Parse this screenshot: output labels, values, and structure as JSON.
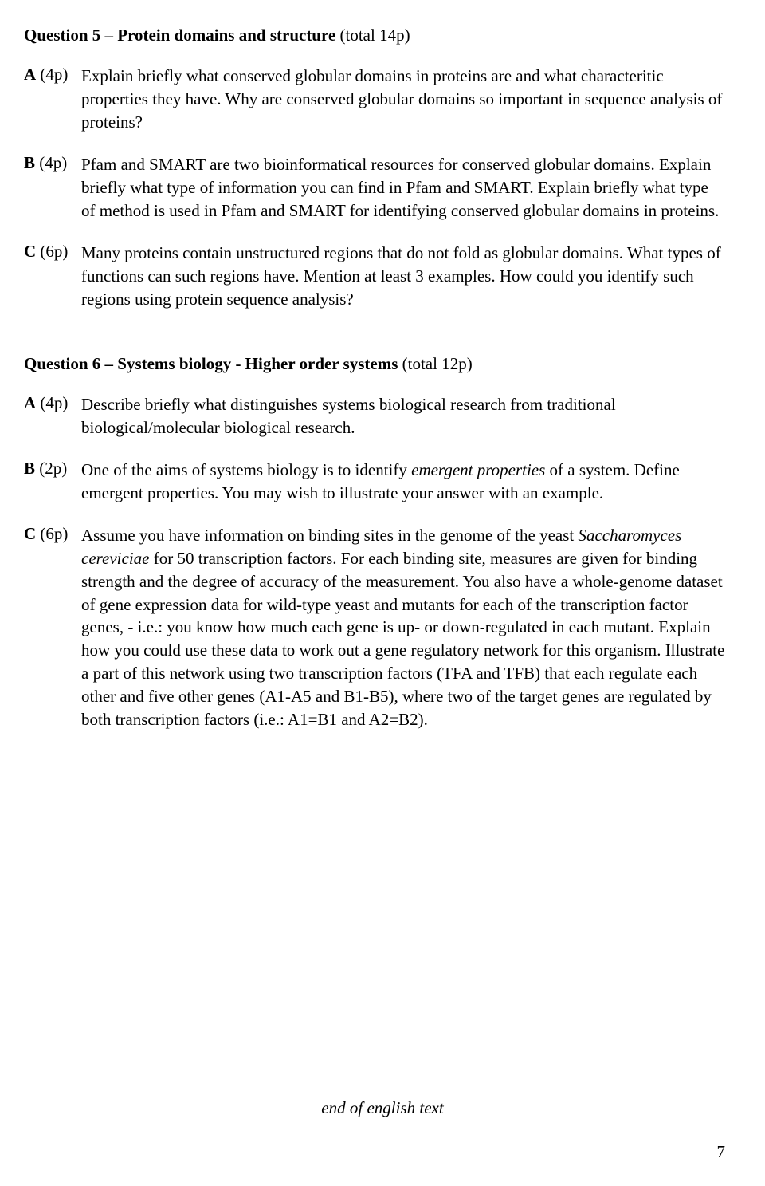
{
  "question5": {
    "heading_bold": "Question 5 – Protein domains and structure",
    "heading_rest": " (total 14p)",
    "partA": {
      "label_bold": "A",
      "label_rest": " (4p)",
      "text": "Explain briefly what conserved globular domains in proteins are and what characteritic properties they have. Why are conserved globular domains so important in sequence analysis of proteins?"
    },
    "partB": {
      "label_bold": "B",
      "label_rest": " (4p)",
      "text": "Pfam and SMART are two bioinformatical resources for conserved globular domains. Explain briefly what type of information you can find in Pfam and SMART. Explain briefly what type of method is used in Pfam and SMART for identifying conserved globular domains in proteins."
    },
    "partC": {
      "label_bold": "C",
      "label_rest": " (6p)",
      "text": "Many proteins contain unstructured regions that do not fold as globular domains. What types of functions can such regions have. Mention at least 3 examples. How could you identify such regions using protein sequence analysis?"
    }
  },
  "question6": {
    "heading_bold": "Question 6 – Systems biology - Higher order systems",
    "heading_rest": " (total 12p)",
    "partA": {
      "label_bold": "A",
      "label_rest": " (4p)",
      "text": "Describe briefly what distinguishes systems biological research from traditional biological/molecular biological research."
    },
    "partB": {
      "label_bold": "B",
      "label_rest": " (2p)",
      "text_before": "One of the aims of systems biology is to identify ",
      "text_italic1": "emergent properties",
      "text_after": " of a system. Define emergent properties. You may wish to illustrate your answer with an example."
    },
    "partC": {
      "label_bold": "C",
      "label_rest": " (6p)",
      "text_before": "Assume you have information on binding sites in the genome of the yeast ",
      "text_italic1": "Saccharomyces cereviciae",
      "text_after": " for 50 transcription factors. For each binding site, measures are given for binding strength and the degree of accuracy of the measurement. You also have a whole-genome dataset of gene expression data for wild-type yeast and mutants for each of the transcription factor genes, - i.e.: you know how much each gene is up- or down-regulated in each mutant. Explain how you could use these data to work out a gene regulatory network for this organism. Illustrate a part of this network using two transcription factors (TFA and TFB) that each regulate each other and five other genes (A1-A5 and B1-B5), where two of the target genes are regulated by both transcription factors (i.e.: A1=B1 and A2=B2)."
    }
  },
  "endText": "end of english text",
  "pageNumber": "7"
}
